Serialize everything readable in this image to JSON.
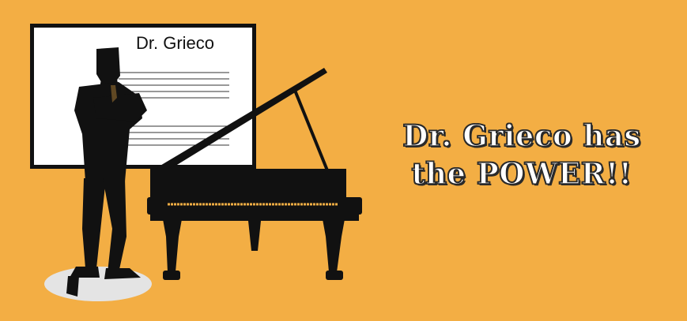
{
  "board": {
    "title": "Dr. Grieco"
  },
  "headline": {
    "line1": "Dr. Grieco has",
    "line2": "the POWER!!"
  },
  "colors": {
    "background": "#f3ae44",
    "ink": "#111111",
    "board": "#ffffff",
    "shadow": "#e4e4e4"
  },
  "icons": {
    "figure": "businessman-silhouette-icon",
    "instrument": "grand-piano-icon"
  }
}
